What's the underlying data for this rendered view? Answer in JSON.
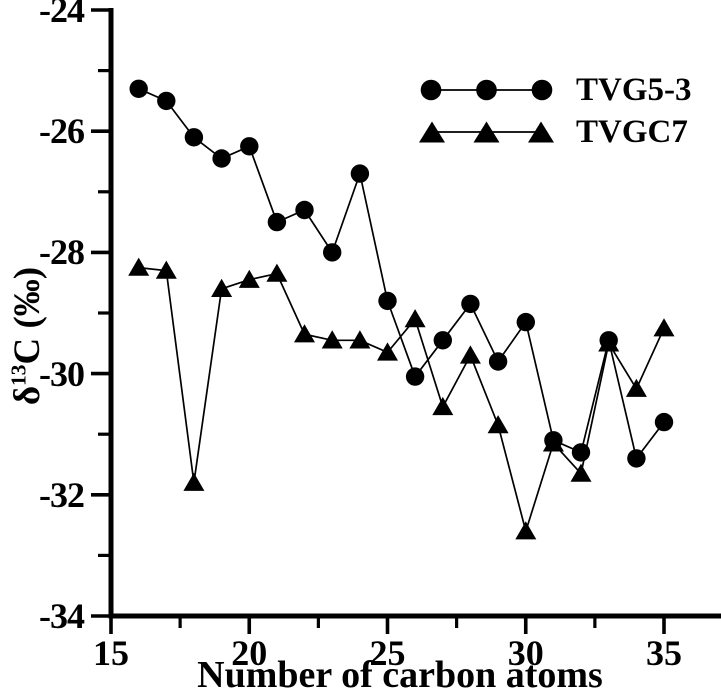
{
  "figure": {
    "background": "#ffffff",
    "ink": "#000000"
  },
  "chart_data": {
    "type": "line",
    "title": "",
    "xlabel": "Number of carbon atoms",
    "ylabel": "δ13C (‰)",
    "ylabel_parts": {
      "base": "δ",
      "superscript": "13",
      "rest": "C (‰)"
    },
    "xlim": [
      15,
      37.1
    ],
    "ylim": [
      -34,
      -24
    ],
    "x_major_ticks": [
      15,
      20,
      25,
      30,
      35
    ],
    "x_minor_ticks": [
      17.5,
      22.5,
      27.5,
      32.5
    ],
    "y_major_ticks": [
      -24,
      -26,
      -28,
      -30,
      -32,
      -34
    ],
    "y_minor_ticks": [
      -25,
      -27,
      -29,
      -31,
      -33
    ],
    "grid": false,
    "legend_position": "upper-right-inside",
    "x": [
      16,
      17,
      18,
      19,
      20,
      21,
      22,
      23,
      24,
      25,
      26,
      27,
      28,
      29,
      30,
      31,
      32,
      33,
      34,
      35
    ],
    "series": [
      {
        "name": "TVG5-3",
        "marker": "circle",
        "color": "#000000",
        "values": [
          -25.3,
          -25.5,
          -26.1,
          -26.45,
          -26.25,
          -27.5,
          -27.3,
          -28.0,
          -26.7,
          -28.8,
          -30.05,
          -29.45,
          -28.85,
          -29.8,
          -29.15,
          -31.1,
          -31.3,
          -29.45,
          -31.4,
          -30.8
        ]
      },
      {
        "name": "TVGC7",
        "marker": "triangle",
        "color": "#000000",
        "values": [
          -28.25,
          -28.3,
          -31.8,
          -28.6,
          -28.45,
          -28.35,
          -29.35,
          -29.45,
          -29.45,
          -29.65,
          -29.1,
          -30.55,
          -29.7,
          -30.85,
          -32.6,
          -31.15,
          -31.65,
          -29.5,
          -30.25,
          -29.25
        ]
      }
    ]
  },
  "legend": {
    "items": [
      {
        "label": "TVG5-3",
        "marker": "circle"
      },
      {
        "label": "TVGC7",
        "marker": "triangle"
      }
    ]
  }
}
